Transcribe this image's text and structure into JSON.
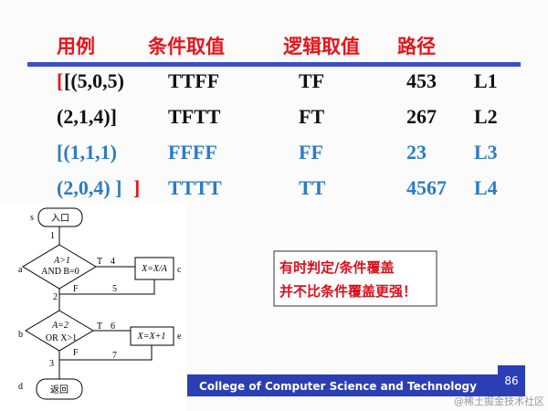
{
  "header": {
    "columns": [
      "用例",
      "条件取值",
      "逻辑取值",
      "路径"
    ]
  },
  "table": {
    "rows": [
      {
        "bracket": "[",
        "case": "[(5,0,5)",
        "conditions": "TTFF",
        "logic": "TF",
        "path": "453",
        "label": "L1"
      },
      {
        "case": "(2,1,4)]",
        "conditions": "TFTT",
        "logic": "FT",
        "path": "267",
        "label": "L2"
      },
      {
        "case": "[(1,1,1)",
        "conditions": "FFFF",
        "logic": "FF",
        "path": "23",
        "label": "L3"
      },
      {
        "case": "(2,0,4) ]",
        "bracket": "]",
        "conditions": "TTTT",
        "logic": "TT",
        "path": "4567",
        "label": "L4"
      }
    ]
  },
  "flowchart": {
    "entry": "入口",
    "exit": "返回",
    "decision1": [
      "A>1",
      "AND B=0"
    ],
    "decision2": [
      "A=2",
      "OR X>1"
    ],
    "box1": "X=X/A",
    "box2": "X=X+1",
    "labels": [
      "s",
      "1",
      "a",
      "T",
      "4",
      "c",
      "F",
      "5",
      "2",
      "b",
      "T",
      "6",
      "e",
      "7",
      "F",
      "3",
      "d"
    ]
  },
  "note": {
    "lines": [
      "有时判定/条件覆盖",
      "并不比条件覆盖更强！"
    ]
  },
  "footer": {
    "college": "College of Computer Science and Technology",
    "page": "86",
    "watermark": "@稀土掘金技术社区"
  }
}
